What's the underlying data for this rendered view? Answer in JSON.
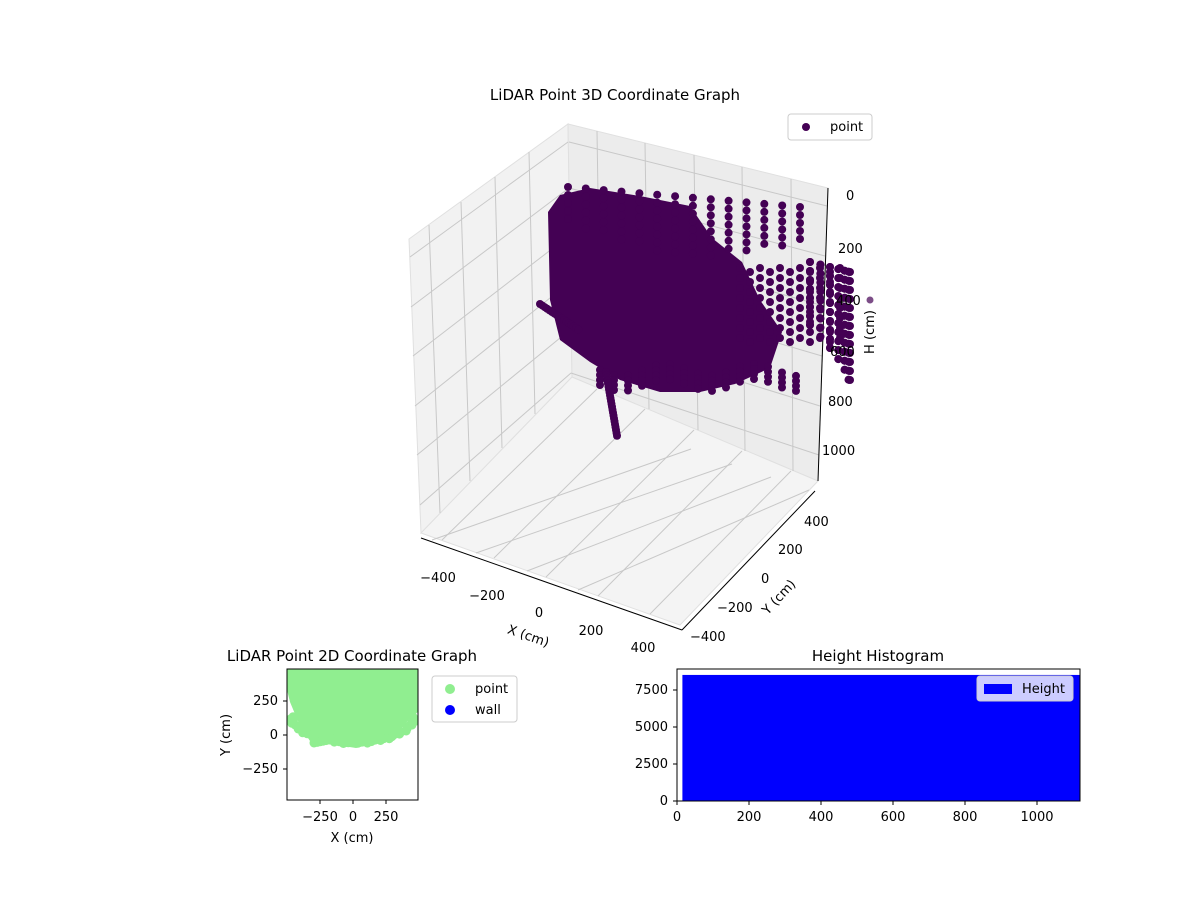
{
  "chart_data": [
    {
      "type": "scatter3d",
      "title": "LiDAR Point 3D Coordinate Graph",
      "xlabel": "X (cm)",
      "ylabel": "Y (cm)",
      "zlabel": "H (cm)",
      "xticks": [
        "−400",
        "−200",
        "0",
        "200",
        "400"
      ],
      "yticks": [
        "400",
        "200",
        "0",
        "−200",
        "−400"
      ],
      "zticks": [
        "0",
        "200",
        "400",
        "600",
        "800",
        "1000"
      ],
      "xlim": [
        -450,
        450
      ],
      "ylim": [
        -450,
        450
      ],
      "zlim": [
        0,
        1100
      ],
      "zaxis_inverted": true,
      "grid": true,
      "legend": {
        "position": "upper-right",
        "entries": [
          {
            "label": "point",
            "color": "#440154"
          }
        ]
      },
      "series": [
        {
          "name": "point",
          "color": "#440154"
        }
      ]
    },
    {
      "type": "scatter",
      "title": "LiDAR Point 2D Coordinate Graph",
      "xlabel": "X (cm)",
      "ylabel": "Y (cm)",
      "xticks": [
        "−250",
        "0",
        "250"
      ],
      "yticks": [
        "250",
        "0",
        "−250"
      ],
      "xlim": [
        -480,
        480
      ],
      "ylim": [
        -480,
        480
      ],
      "grid": false,
      "legend": {
        "position": "outside-right",
        "entries": [
          {
            "label": "point",
            "color": "#90ee90"
          },
          {
            "label": "wall",
            "color": "#0000ff"
          }
        ]
      },
      "series": [
        {
          "name": "point",
          "color": "#90ee90"
        },
        {
          "name": "wall",
          "color": "#0000ff"
        }
      ]
    },
    {
      "type": "bar",
      "title": "Height Histogram",
      "xlabel": "",
      "ylabel": "",
      "xticks": [
        "0",
        "200",
        "400",
        "600",
        "800",
        "1000"
      ],
      "yticks": [
        "0",
        "2500",
        "5000",
        "7500"
      ],
      "xlim": [
        0,
        1120
      ],
      "ylim": [
        0,
        8900
      ],
      "bins": [
        {
          "x0": 15,
          "x1": 1120,
          "value": 8500
        }
      ],
      "color": "#0000ff",
      "legend": {
        "position": "upper-right",
        "entries": [
          {
            "label": "Height",
            "color": "#0000ff"
          }
        ]
      }
    }
  ]
}
